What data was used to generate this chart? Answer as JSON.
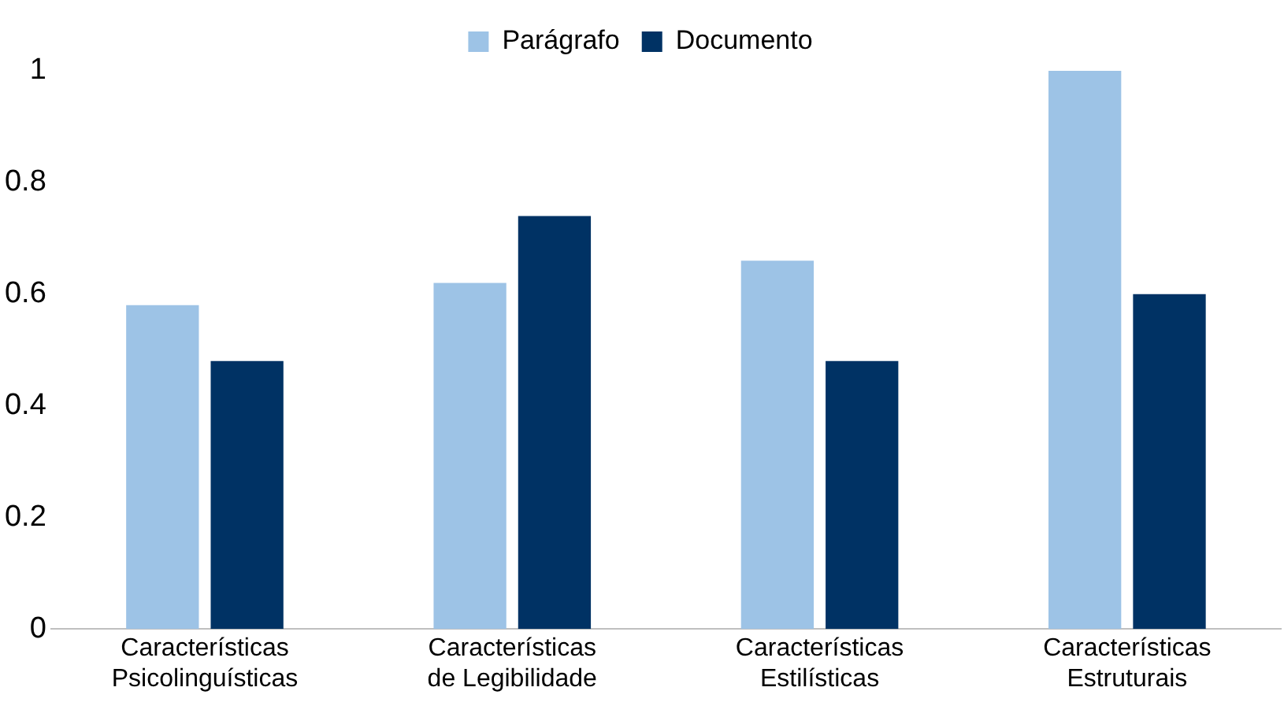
{
  "chart_data": {
    "type": "bar",
    "categories": [
      "Características Psicolinguísticas",
      "Características de Legibilidade",
      "Características Estilísticas",
      "Características Estruturais"
    ],
    "series": [
      {
        "name": "Parágrafo",
        "color": "#9dc3e6",
        "values": [
          0.58,
          0.62,
          0.66,
          1.0
        ]
      },
      {
        "name": "Documento",
        "color": "#003264",
        "values": [
          0.48,
          0.74,
          0.48,
          0.6
        ]
      }
    ],
    "ylim": [
      0,
      1
    ],
    "yticks": [
      0,
      0.2,
      0.4,
      0.6,
      0.8,
      1
    ],
    "grid": false,
    "legend": "top"
  }
}
